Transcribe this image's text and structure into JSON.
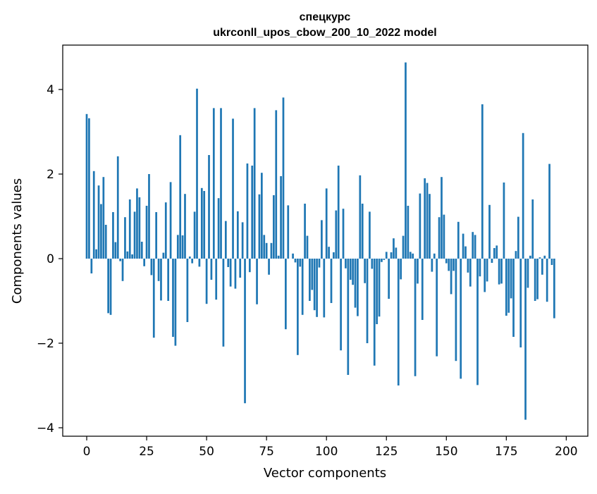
{
  "chart_data": {
    "type": "bar",
    "title": "спецкурс",
    "subtitle": "ukrconll_upos_cbow_200_10_2022 model",
    "xlabel": "Vector components",
    "ylabel": "Components values",
    "xlim": [
      -10,
      209
    ],
    "ylim": [
      -4.2,
      5.05
    ],
    "xticks": [
      0,
      25,
      50,
      75,
      100,
      125,
      150,
      175,
      200
    ],
    "yticks": [
      -4,
      -2,
      0,
      2,
      4
    ],
    "xtick_labels": [
      "0",
      "25",
      "50",
      "75",
      "100",
      "125",
      "150",
      "175",
      "200"
    ],
    "ytick_labels": [
      "−4",
      "−2",
      "0",
      "2",
      "4"
    ],
    "bar_color": "#1f77b4",
    "grid": false,
    "legend": "none",
    "values": [
      3.42,
      3.32,
      -0.35,
      2.07,
      0.22,
      1.73,
      1.29,
      1.93,
      0.8,
      -1.29,
      -1.33,
      1.1,
      0.39,
      2.42,
      -0.06,
      -0.53,
      0.98,
      0.17,
      1.4,
      0.1,
      1.11,
      1.66,
      1.45,
      0.4,
      -0.18,
      1.25,
      2.0,
      -0.39,
      -1.87,
      1.1,
      -0.53,
      -0.99,
      0.14,
      1.33,
      -1.0,
      1.81,
      -1.85,
      -2.06,
      0.56,
      2.92,
      0.55,
      1.53,
      -1.5,
      0.05,
      -0.11,
      1.11,
      4.02,
      -0.19,
      1.67,
      1.6,
      -1.07,
      2.45,
      -0.5,
      3.56,
      -0.97,
      1.43,
      3.56,
      -2.08,
      0.89,
      -0.2,
      -0.66,
      3.31,
      -0.71,
      1.12,
      -0.45,
      0.86,
      -3.42,
      2.25,
      -0.32,
      2.2,
      3.56,
      -1.08,
      1.52,
      2.03,
      0.56,
      0.37,
      -0.38,
      0.37,
      1.5,
      3.51,
      0.07,
      1.95,
      3.81,
      -1.67,
      1.26,
      0.0,
      0.12,
      -0.09,
      -2.28,
      -0.19,
      -1.33,
      1.3,
      0.54,
      -1.0,
      -0.74,
      -1.22,
      -1.38,
      -0.21,
      0.91,
      -1.39,
      1.66,
      0.28,
      -1.05,
      0.15,
      1.14,
      2.2,
      -2.17,
      1.18,
      -0.23,
      -2.75,
      -0.5,
      -0.62,
      -1.16,
      -1.36,
      1.97,
      1.3,
      -0.58,
      -2.0,
      1.11,
      -0.24,
      -2.53,
      -1.55,
      -1.37,
      -0.08,
      -0.03,
      0.16,
      -0.95,
      0.15,
      0.48,
      0.26,
      -3.0,
      -0.49,
      0.54,
      4.64,
      1.25,
      0.16,
      0.12,
      -2.78,
      -0.59,
      1.54,
      -1.45,
      1.9,
      1.79,
      1.53,
      -0.31,
      0.12,
      -2.31,
      0.98,
      1.93,
      1.04,
      -0.11,
      -0.29,
      -0.84,
      -0.29,
      -2.42,
      0.87,
      -2.84,
      0.59,
      0.29,
      -0.33,
      -0.66,
      0.63,
      0.56,
      -2.99,
      -0.42,
      3.65,
      -0.79,
      -0.54,
      1.27,
      -0.1,
      0.25,
      0.31,
      -0.61,
      -0.59,
      1.8,
      -1.35,
      -1.28,
      -0.94,
      -1.85,
      0.18,
      0.99,
      -2.1,
      2.97,
      -3.81,
      -0.69,
      0.07,
      1.4,
      -1.0,
      -0.96,
      0.03,
      -0.38,
      0.07,
      -1.02,
      2.24,
      -0.15,
      -1.41
    ]
  }
}
